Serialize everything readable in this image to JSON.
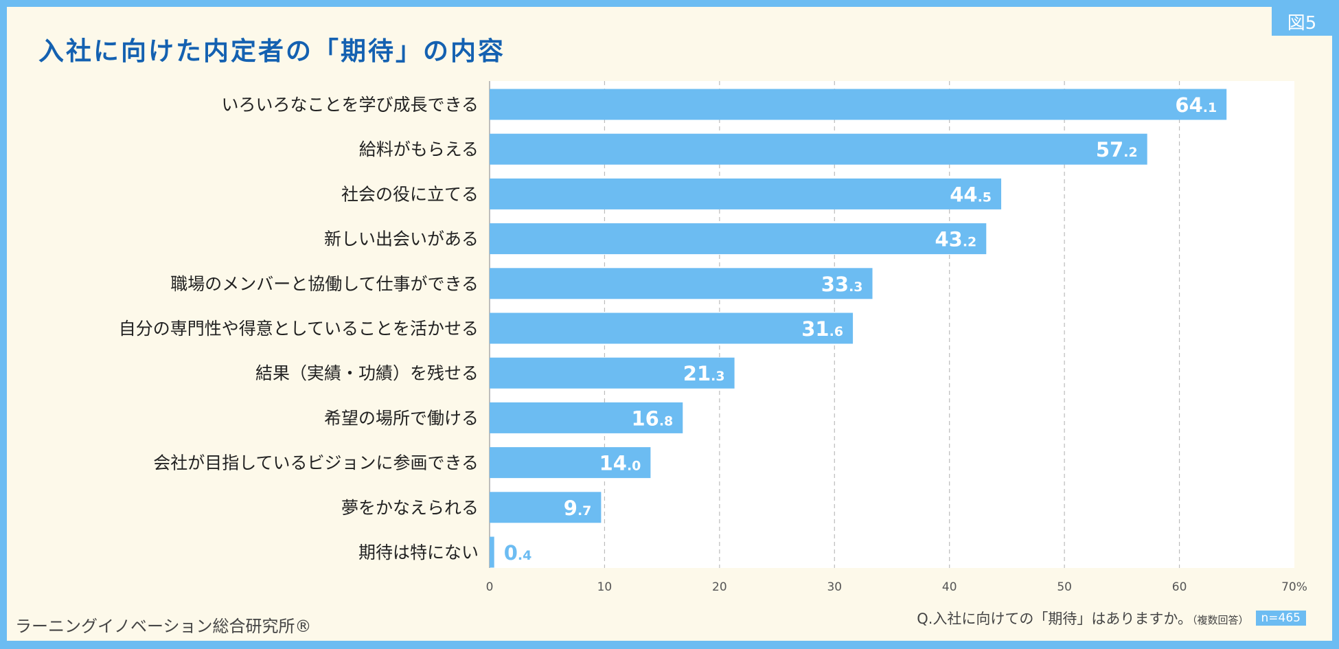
{
  "badge": "図5",
  "title": "入社に向けた内定者の「期待」の内容",
  "footer": {
    "org": "ラーニングイノベーション総合研究所®",
    "question": "Q.入社に向けての「期待」はありますか。",
    "note": "（複数回答）",
    "n": "n=465"
  },
  "colors": {
    "bar": "#6cbcf2",
    "title": "#1461b1",
    "background": "#fdf9ea"
  },
  "chart_data": {
    "type": "bar",
    "orientation": "horizontal",
    "categories": [
      "いろいろなことを学び成長できる",
      "給料がもらえる",
      "社会の役に立てる",
      "新しい出会いがある",
      "職場のメンバーと協働して仕事ができる",
      "自分の専門性や得意としていることを活かせる",
      "結果（実績・功績）を残せる",
      "希望の場所で働ける",
      "会社が目指しているビジョンに参画できる",
      "夢をかなえられる",
      "期待は特にない"
    ],
    "values": [
      64.1,
      57.2,
      44.5,
      43.2,
      33.3,
      31.6,
      21.3,
      16.8,
      14.0,
      9.7,
      0.4
    ],
    "xlim": [
      0,
      70
    ],
    "ticks": [
      "0",
      "10",
      "20",
      "30",
      "40",
      "50",
      "60",
      "70%"
    ],
    "grid": true
  }
}
